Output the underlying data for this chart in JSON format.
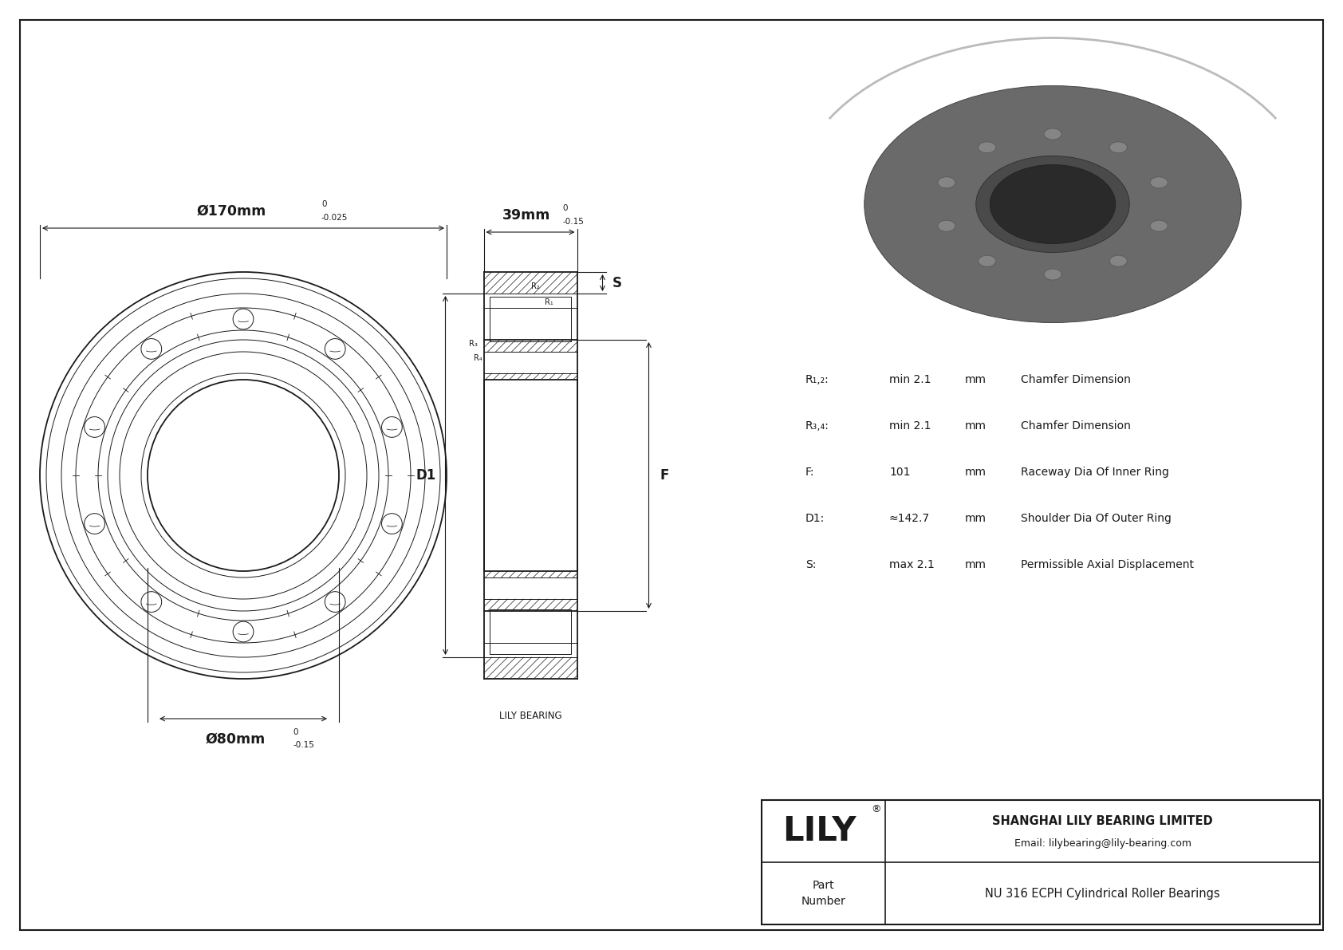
{
  "bg_color": "#ffffff",
  "line_color": "#1a1a1a",
  "dim_od": "Ø170mm",
  "dim_od_tol_top": "0",
  "dim_od_tol_bot": "-0.025",
  "dim_id": "Ø80mm",
  "dim_id_tol_top": "0",
  "dim_id_tol_bot": "-0.15",
  "dim_width": "39mm",
  "dim_width_tol_top": "0",
  "dim_width_tol_bot": "-0.15",
  "company_name": "SHANGHAI LILY BEARING LIMITED",
  "email": "Email: lilybearing@lily-bearing.com",
  "part_label": "Part\nNumber",
  "part_number": "NU 316 ECPH Cylindrical Roller Bearings",
  "lily_text": "LILY",
  "specs": [
    [
      "R₁,₂:",
      "min 2.1",
      "mm",
      "Chamfer Dimension"
    ],
    [
      "R₃,₄:",
      "min 2.1",
      "mm",
      "Chamfer Dimension"
    ],
    [
      "F:",
      "101",
      "mm",
      "Raceway Dia Of Inner Ring"
    ],
    [
      "D1:",
      "≈142.7",
      "mm",
      "Shoulder Dia Of Outer Ring"
    ],
    [
      "S:",
      "max 2.1",
      "mm",
      "Permissible Axial Displacement"
    ]
  ]
}
